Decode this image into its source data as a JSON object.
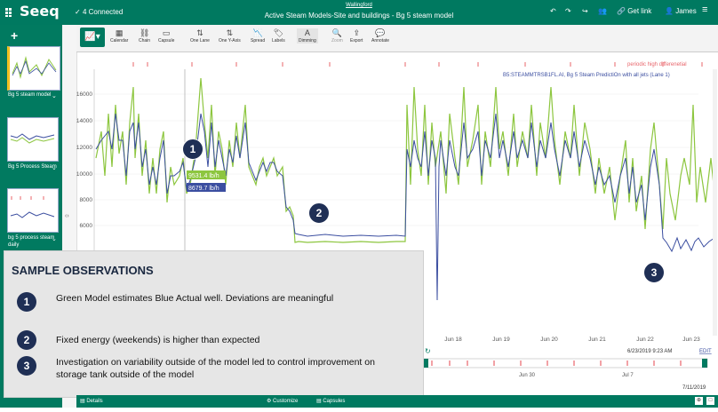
{
  "app": {
    "logo": "Seeq",
    "connection": "4 Connected",
    "subtitle": "Wallingford",
    "title": "Active Steam Models-Site and buildings - Bg 5 steam model",
    "get_link": "Get link",
    "user": "James"
  },
  "toolbar": {
    "items": [
      "Calendar",
      "Chain",
      "Capsule",
      "One Lane",
      "One Y-Axis",
      "Spread",
      "Labels",
      "Dimming",
      "Zoom",
      "Export",
      "Annotate"
    ]
  },
  "sidebar": {
    "items": [
      "Bg 5 steam model",
      "Bg 5 Process Steam",
      "bg 5 process steam daily"
    ]
  },
  "chart": {
    "legend_line1": "periodic high differenetial",
    "legend_line2": "B5:STEAMMTRSB1FL.AI, Bg 5 Steam PredictiOn with all jets (Lane 1)",
    "y_ticks": [
      "16000",
      "14000",
      "12000",
      "10000",
      "8000",
      "6000"
    ],
    "x_ticks": [
      "Jun 18",
      "Jun 19",
      "Jun 20",
      "Jun 21",
      "Jun 22",
      "Jun 23"
    ],
    "tooltip_model": "9531.4 lb/h",
    "tooltip_actual": "8679.7 lb/h",
    "start_time": "6/23/2019 9:23 AM",
    "start_edit": "EDIT",
    "nav_ticks": [
      "Jun 30",
      "Jul 7"
    ],
    "end_date": "7/11/2019",
    "colors": {
      "model": "#8dc63f",
      "actual": "#3b4ea0",
      "capsule": "#e8646a"
    }
  },
  "observations": {
    "heading": "SAMPLE OBSERVATIONS",
    "items": [
      {
        "num": "1",
        "text": "Green Model estimates Blue Actual well. Deviations are meaningful"
      },
      {
        "num": "2",
        "text": "Fixed energy (weekends) is higher than expected"
      },
      {
        "num": "3",
        "text": "Investigation on variability outside of the model led to control improvement on storage tank outside of the model"
      }
    ]
  },
  "callouts": [
    "1",
    "2",
    "3"
  ],
  "bottom": {
    "details": "Details",
    "customize": "Customize",
    "capsules": "Capsules"
  }
}
